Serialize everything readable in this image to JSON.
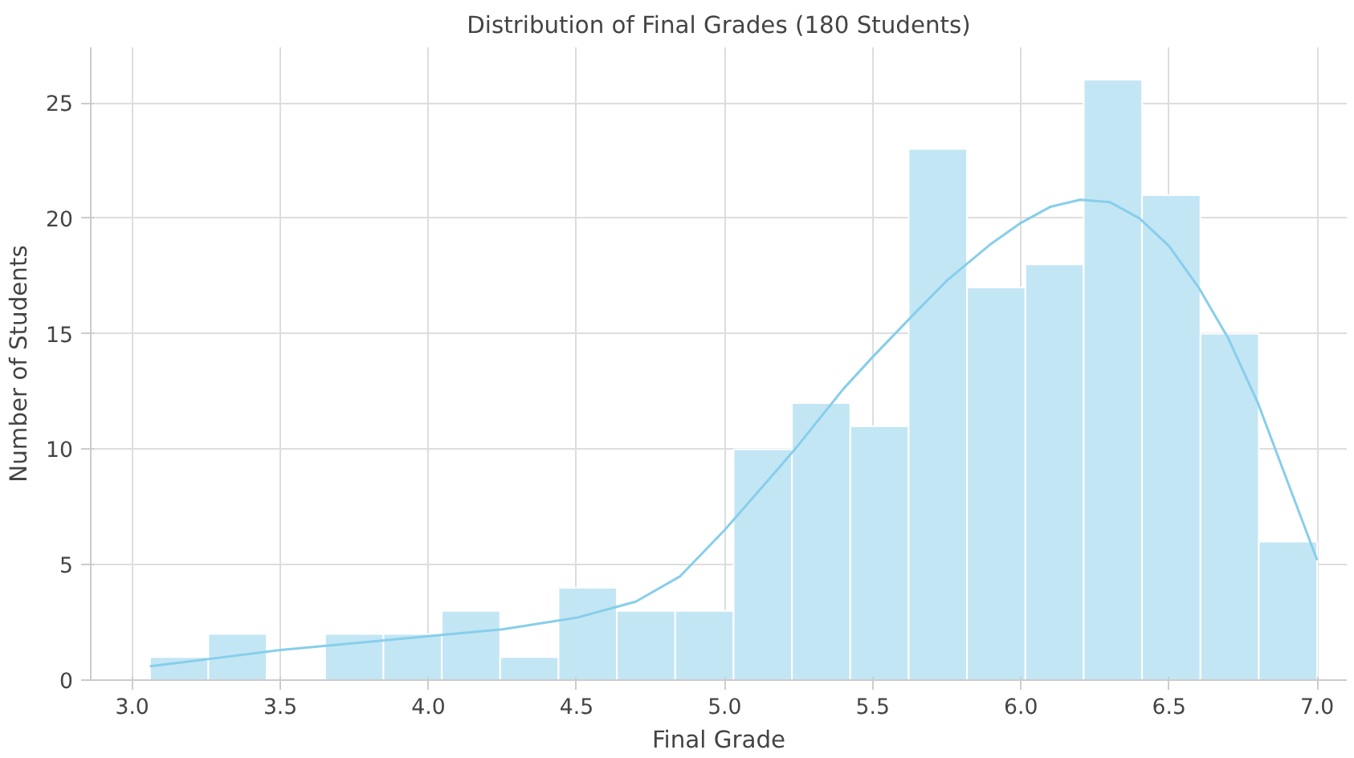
{
  "chart_data": {
    "type": "histogram",
    "title": "Distribution of Final Grades (180 Students)",
    "xlabel": "Final Grade",
    "ylabel": "Number of Students",
    "bins": [
      3.06,
      3.257,
      3.454,
      3.651,
      3.848,
      4.045,
      4.242,
      4.439,
      4.636,
      4.833,
      5.03,
      5.227,
      5.424,
      5.621,
      5.818,
      6.015,
      6.212,
      6.409,
      6.606,
      6.803,
      7.0
    ],
    "values": [
      1,
      2,
      0,
      2,
      2,
      3,
      1,
      4,
      3,
      3,
      10,
      12,
      11,
      23,
      17,
      18,
      26,
      21,
      15,
      6
    ],
    "color": "#c3e6f4",
    "series": [
      {
        "type": "line",
        "color": "#87ceeb",
        "x": [
          3.06,
          3.25,
          3.5,
          3.75,
          4.0,
          4.25,
          4.5,
          4.7,
          4.85,
          5.0,
          5.15,
          5.25,
          5.4,
          5.5,
          5.65,
          5.75,
          5.9,
          6.0,
          6.1,
          6.2,
          6.3,
          6.4,
          6.5,
          6.6,
          6.7,
          6.8,
          6.9,
          7.0
        ],
        "values": [
          0.6,
          0.9,
          1.3,
          1.6,
          1.9,
          2.2,
          2.7,
          3.4,
          4.5,
          6.5,
          8.7,
          10.2,
          12.6,
          14.0,
          16.0,
          17.3,
          18.9,
          19.8,
          20.5,
          20.8,
          20.7,
          20.0,
          18.8,
          17.0,
          14.8,
          12.0,
          8.6,
          5.2
        ]
      }
    ],
    "xlim": [
      2.86,
      7.1
    ],
    "ylim": [
      0,
      27.4
    ],
    "xticks": [
      {
        "value": 3,
        "label": "3.0"
      },
      3.5,
      {
        "value": 4,
        "label": "4.0"
      },
      4.5,
      {
        "value": 5,
        "label": "5.0"
      },
      5.5,
      {
        "value": 6,
        "label": "6.0"
      },
      6.5,
      {
        "value": 7,
        "label": "7.0"
      }
    ],
    "yticks": [
      0,
      5,
      10,
      15,
      20,
      25
    ],
    "grid": true
  }
}
